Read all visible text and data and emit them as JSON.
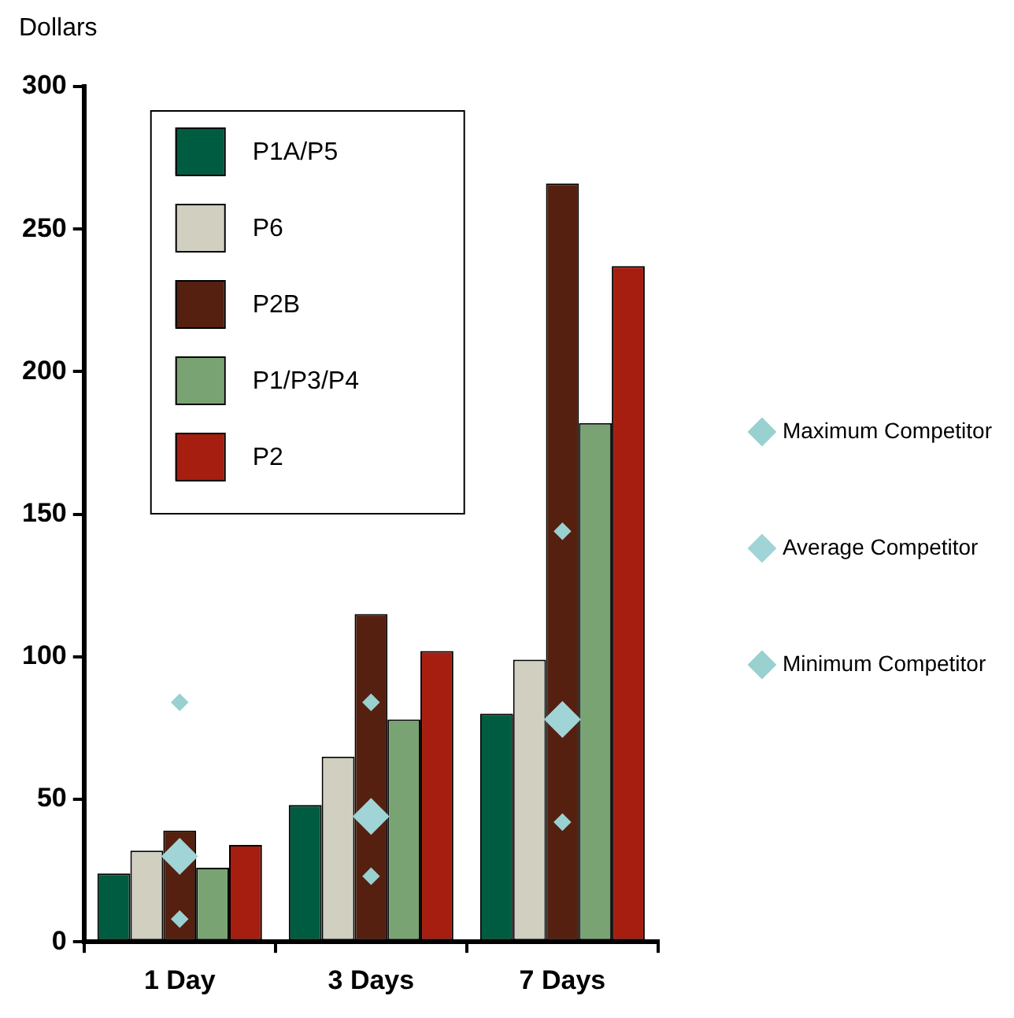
{
  "chart_data": {
    "type": "bar",
    "ylabel": "Dollars",
    "categories": [
      "1 Day",
      "3 Days",
      "7 Days"
    ],
    "series": [
      {
        "name": "P1A/P5",
        "color": "#005c40",
        "values": [
          24,
          48,
          80
        ]
      },
      {
        "name": "P6",
        "color": "#d0cfc0",
        "values": [
          32,
          65,
          99
        ]
      },
      {
        "name": "P2B",
        "color": "#55200f",
        "values": [
          39,
          115,
          266
        ]
      },
      {
        "name": "P1/P3/P4",
        "color": "#7aa373",
        "values": [
          26,
          78,
          182
        ]
      },
      {
        "name": "P2",
        "color": "#a51e10",
        "values": [
          34,
          102,
          237
        ]
      },
      {
        "name": "Maximum Competitor",
        "type": "scatter",
        "color": "#99d0d0",
        "x": [
          "1 Day",
          "3 Days",
          "7 Days"
        ],
        "values": [
          84,
          84,
          144
        ],
        "sizes": [
          0.2,
          0.2,
          0.2
        ]
      },
      {
        "name": "Average Competitor",
        "type": "scatter",
        "color": "#a0d4d6",
        "x": [
          "1 Day",
          "3 Days",
          "7 Days"
        ],
        "values": [
          30,
          44,
          78
        ],
        "sizes": [
          1,
          1,
          1
        ]
      },
      {
        "name": "Minimum Competitor",
        "type": "scatter",
        "color": "#99d0d0",
        "x": [
          "1 Day",
          "3 Days",
          "7 Days"
        ],
        "values": [
          8,
          23,
          42
        ],
        "sizes": [
          0.2,
          0.2,
          0.2
        ]
      }
    ],
    "ylim": [
      0,
      300
    ],
    "yticks": [
      0,
      50,
      100,
      150,
      200,
      250,
      300
    ],
    "grid": false,
    "legend": "top right",
    "marker": "diamond"
  }
}
